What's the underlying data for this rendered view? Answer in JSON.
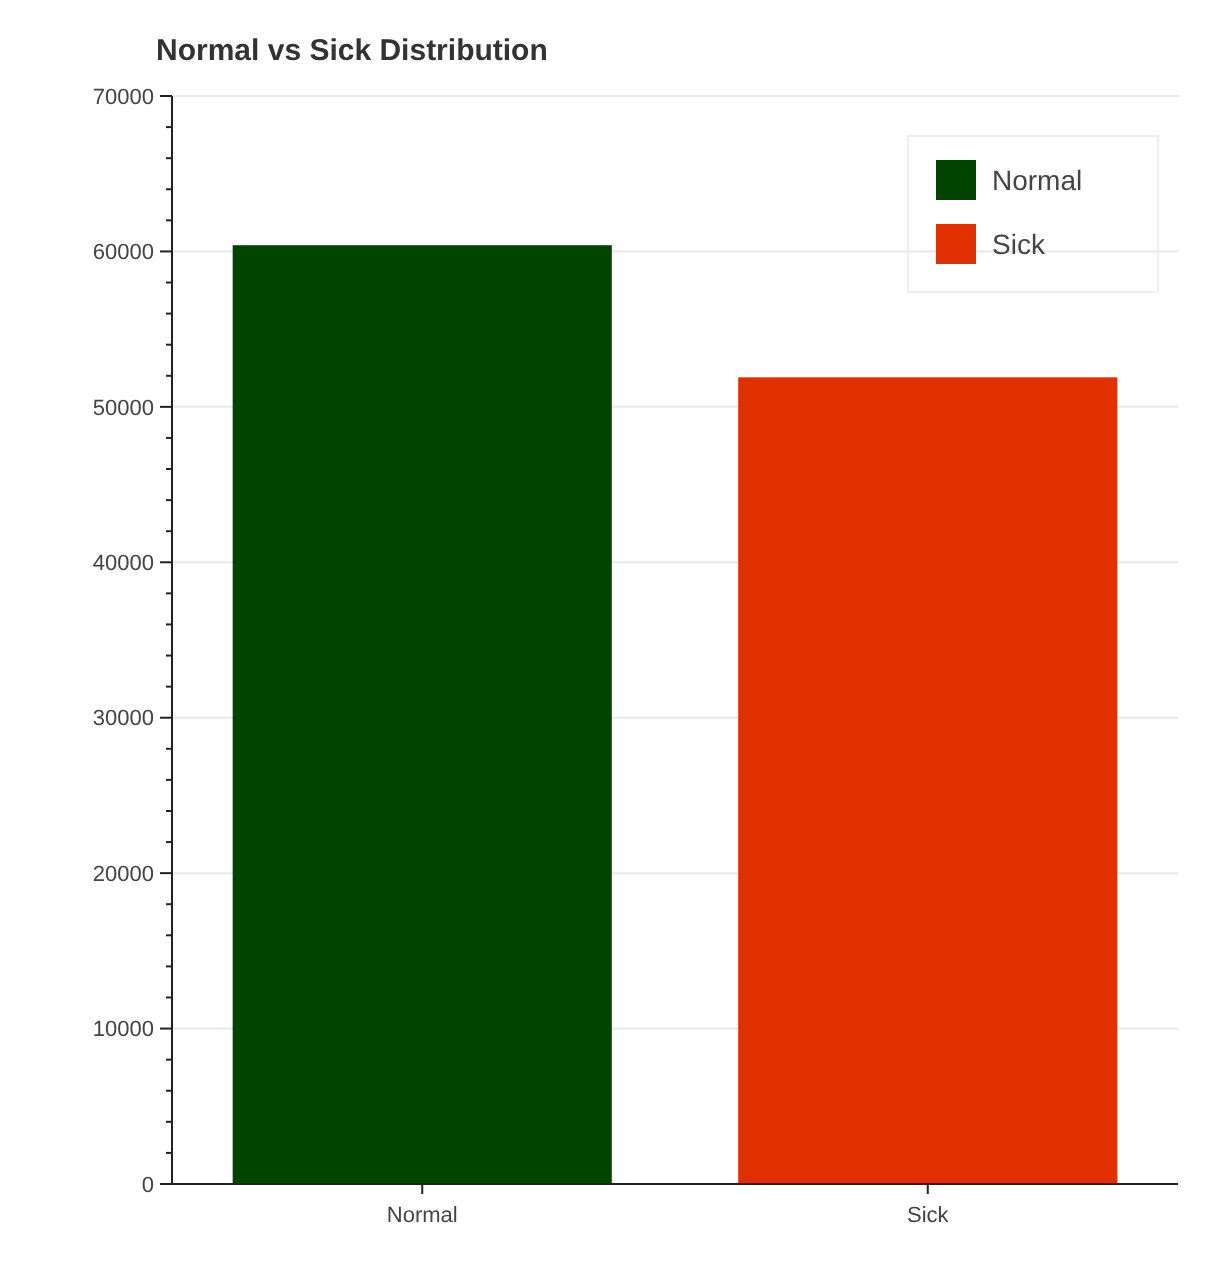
{
  "chart_data": {
    "type": "bar",
    "title": "Normal vs Sick Distribution",
    "categories": [
      "Normal",
      "Sick"
    ],
    "series": [
      {
        "name": "Normal",
        "color": "#004400",
        "values": [
          60400,
          null
        ]
      },
      {
        "name": "Sick",
        "color": "#e03000",
        "values": [
          null,
          51900
        ]
      }
    ],
    "ylim": [
      0,
      70000
    ],
    "yticks": [
      0,
      {
        "value": 2000,
        "label": null
      },
      {
        "value": 4000,
        "label": null
      },
      {
        "value": 6000,
        "label": null
      },
      {
        "value": 8000,
        "label": null
      },
      10000,
      {
        "value": 12000,
        "label": null
      },
      {
        "value": 14000,
        "label": null
      },
      {
        "value": 16000,
        "label": null
      },
      {
        "value": 18000,
        "label": null
      },
      20000,
      {
        "value": 22000,
        "label": null
      },
      {
        "value": 24000,
        "label": null
      },
      {
        "value": 26000,
        "label": null
      },
      {
        "value": 28000,
        "label": null
      },
      30000,
      {
        "value": 32000,
        "label": null
      },
      {
        "value": 34000,
        "label": null
      },
      {
        "value": 36000,
        "label": null
      },
      {
        "value": 38000,
        "label": null
      },
      40000,
      {
        "value": 42000,
        "label": null
      },
      {
        "value": 44000,
        "label": null
      },
      {
        "value": 46000,
        "label": null
      },
      {
        "value": 48000,
        "label": null
      },
      50000,
      {
        "value": 52000,
        "label": null
      },
      {
        "value": 54000,
        "label": null
      },
      {
        "value": 56000,
        "label": null
      },
      {
        "value": 58000,
        "label": null
      },
      60000,
      {
        "value": 62000,
        "label": null
      },
      {
        "value": 64000,
        "label": null
      },
      {
        "value": 66000,
        "label": null
      },
      {
        "value": 68000,
        "label": null
      },
      70000
    ],
    "grid": "y",
    "legend": "top right"
  }
}
